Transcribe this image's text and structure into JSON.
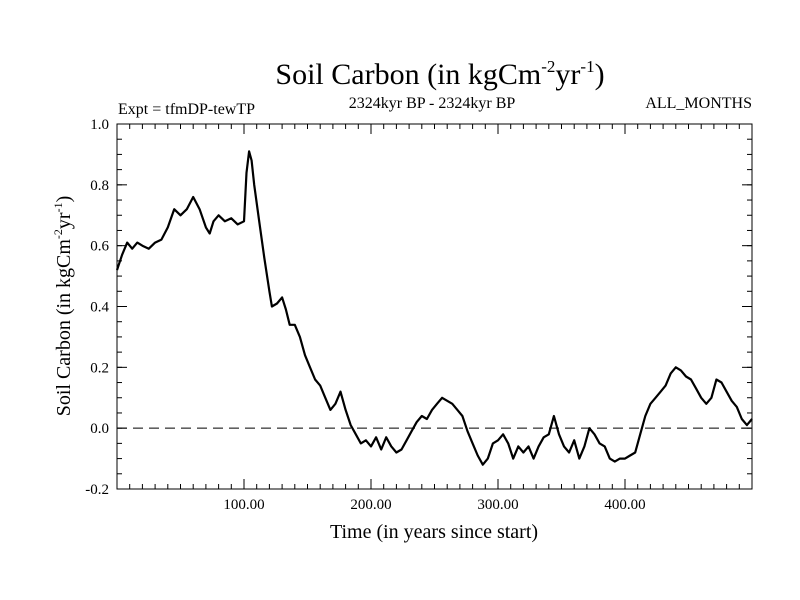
{
  "chart_data": {
    "type": "line",
    "title": {
      "main": "Soil Carbon (in kgCm",
      "sup1": "-2",
      "mid": "yr",
      "sup2": "-1",
      "end": ")"
    },
    "experiment_label": "Expt = tfmDP-tewTP",
    "period_label": "2324kyr BP - 2324kyr BP",
    "months_label": "ALL_MONTHS",
    "xlabel": "Time (in years since start)",
    "ylabel": {
      "main": "Soil Carbon (in kgCm",
      "sup1": "-2",
      "mid": "yr",
      "sup2": "-1",
      "end": ")"
    },
    "xlim": [
      0,
      500
    ],
    "ylim": [
      -0.2,
      1.0
    ],
    "x_ticks": [
      {
        "value": 100,
        "label": "100.00"
      },
      {
        "value": 200,
        "label": "200.00"
      },
      {
        "value": 300,
        "label": "300.00"
      },
      {
        "value": 400,
        "label": "400.00"
      }
    ],
    "y_ticks": [
      {
        "value": -0.2,
        "label": "-0.2"
      },
      {
        "value": 0.0,
        "label": "0.0"
      },
      {
        "value": 0.2,
        "label": "0.2"
      },
      {
        "value": 0.4,
        "label": "0.4"
      },
      {
        "value": 0.6,
        "label": "0.6"
      },
      {
        "value": 0.8,
        "label": "0.8"
      },
      {
        "value": 1.0,
        "label": "1.0"
      }
    ],
    "reference_line": {
      "y": 0.0,
      "style": "dashed"
    },
    "series": [
      {
        "name": "Soil Carbon",
        "color": "#000000",
        "points": [
          [
            0,
            0.52
          ],
          [
            4,
            0.57
          ],
          [
            8,
            0.61
          ],
          [
            12,
            0.59
          ],
          [
            16,
            0.61
          ],
          [
            20,
            0.6
          ],
          [
            25,
            0.59
          ],
          [
            30,
            0.61
          ],
          [
            35,
            0.62
          ],
          [
            40,
            0.66
          ],
          [
            45,
            0.72
          ],
          [
            50,
            0.7
          ],
          [
            55,
            0.72
          ],
          [
            60,
            0.76
          ],
          [
            65,
            0.72
          ],
          [
            70,
            0.66
          ],
          [
            73,
            0.64
          ],
          [
            76,
            0.68
          ],
          [
            80,
            0.7
          ],
          [
            85,
            0.68
          ],
          [
            90,
            0.69
          ],
          [
            95,
            0.67
          ],
          [
            100,
            0.68
          ],
          [
            102,
            0.84
          ],
          [
            104,
            0.91
          ],
          [
            106,
            0.88
          ],
          [
            108,
            0.8
          ],
          [
            112,
            0.68
          ],
          [
            116,
            0.56
          ],
          [
            120,
            0.45
          ],
          [
            122,
            0.4
          ],
          [
            126,
            0.41
          ],
          [
            130,
            0.43
          ],
          [
            133,
            0.39
          ],
          [
            136,
            0.34
          ],
          [
            140,
            0.34
          ],
          [
            144,
            0.3
          ],
          [
            148,
            0.24
          ],
          [
            152,
            0.2
          ],
          [
            156,
            0.16
          ],
          [
            160,
            0.14
          ],
          [
            164,
            0.1
          ],
          [
            168,
            0.06
          ],
          [
            172,
            0.08
          ],
          [
            176,
            0.12
          ],
          [
            180,
            0.06
          ],
          [
            184,
            0.01
          ],
          [
            188,
            -0.02
          ],
          [
            192,
            -0.05
          ],
          [
            196,
            -0.04
          ],
          [
            200,
            -0.06
          ],
          [
            204,
            -0.03
          ],
          [
            208,
            -0.07
          ],
          [
            212,
            -0.03
          ],
          [
            216,
            -0.06
          ],
          [
            220,
            -0.08
          ],
          [
            224,
            -0.07
          ],
          [
            228,
            -0.04
          ],
          [
            232,
            -0.01
          ],
          [
            236,
            0.02
          ],
          [
            240,
            0.04
          ],
          [
            244,
            0.03
          ],
          [
            248,
            0.06
          ],
          [
            252,
            0.08
          ],
          [
            256,
            0.1
          ],
          [
            260,
            0.09
          ],
          [
            264,
            0.08
          ],
          [
            268,
            0.06
          ],
          [
            272,
            0.04
          ],
          [
            276,
            -0.01
          ],
          [
            280,
            -0.05
          ],
          [
            284,
            -0.09
          ],
          [
            288,
            -0.12
          ],
          [
            292,
            -0.1
          ],
          [
            296,
            -0.05
          ],
          [
            300,
            -0.04
          ],
          [
            304,
            -0.02
          ],
          [
            308,
            -0.05
          ],
          [
            312,
            -0.1
          ],
          [
            316,
            -0.06
          ],
          [
            320,
            -0.08
          ],
          [
            324,
            -0.06
          ],
          [
            328,
            -0.1
          ],
          [
            332,
            -0.06
          ],
          [
            336,
            -0.03
          ],
          [
            340,
            -0.02
          ],
          [
            344,
            0.04
          ],
          [
            348,
            -0.02
          ],
          [
            352,
            -0.06
          ],
          [
            356,
            -0.08
          ],
          [
            360,
            -0.04
          ],
          [
            364,
            -0.1
          ],
          [
            368,
            -0.06
          ],
          [
            372,
            0.0
          ],
          [
            376,
            -0.02
          ],
          [
            380,
            -0.05
          ],
          [
            384,
            -0.06
          ],
          [
            388,
            -0.1
          ],
          [
            392,
            -0.11
          ],
          [
            396,
            -0.1
          ],
          [
            400,
            -0.1
          ],
          [
            404,
            -0.09
          ],
          [
            408,
            -0.08
          ],
          [
            412,
            -0.02
          ],
          [
            416,
            0.04
          ],
          [
            420,
            0.08
          ],
          [
            424,
            0.1
          ],
          [
            428,
            0.12
          ],
          [
            432,
            0.14
          ],
          [
            436,
            0.18
          ],
          [
            440,
            0.2
          ],
          [
            444,
            0.19
          ],
          [
            448,
            0.17
          ],
          [
            452,
            0.16
          ],
          [
            456,
            0.13
          ],
          [
            460,
            0.1
          ],
          [
            464,
            0.08
          ],
          [
            468,
            0.1
          ],
          [
            472,
            0.16
          ],
          [
            476,
            0.15
          ],
          [
            480,
            0.12
          ],
          [
            484,
            0.09
          ],
          [
            488,
            0.07
          ],
          [
            492,
            0.03
          ],
          [
            496,
            0.01
          ],
          [
            500,
            0.03
          ]
        ]
      }
    ]
  }
}
